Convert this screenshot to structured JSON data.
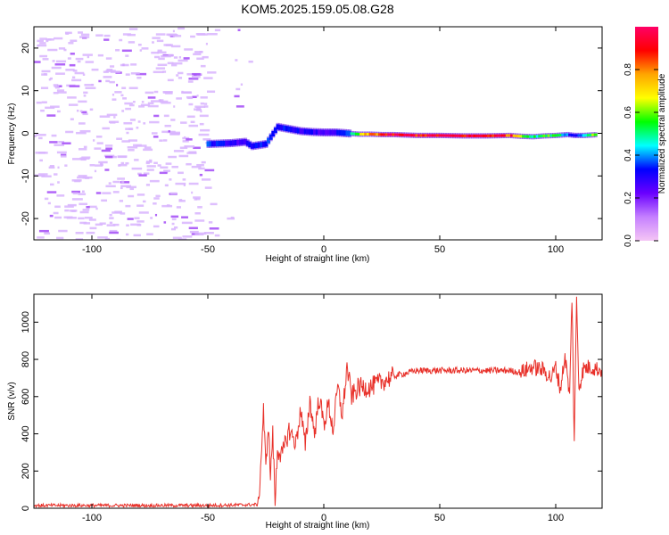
{
  "figure": {
    "title": "KOM5.2025.159.05.08.G28"
  },
  "chart_data": [
    {
      "type": "heatmap",
      "id": "spectrogram",
      "title": "KOM5.2025.159.05.08.G28",
      "xlabel": "Height of straight line (km)",
      "ylabel": "Frequency (Hz)",
      "xlim": [
        -125,
        120
      ],
      "ylim": [
        -25,
        25
      ],
      "xticks": [
        -100,
        -50,
        0,
        50,
        100
      ],
      "yticks": [
        -20,
        -10,
        0,
        10,
        20
      ],
      "colorbar": {
        "label": "Normalized spectral amplitude",
        "range": [
          0,
          1
        ],
        "ticks": [
          0.0,
          0.2,
          0.4,
          0.6,
          0.8
        ],
        "tick_labels": [
          "0.0",
          "0.2",
          "0.4",
          "0.6",
          "0.8"
        ],
        "colormap": [
          "#f5c6f5",
          "#c580ff",
          "#6a00ff",
          "#0000ff",
          "#00ffff",
          "#00ff00",
          "#ffff00",
          "#ffa500",
          "#ff0000",
          "#ff0066"
        ]
      },
      "noise_region_x": [
        -125,
        -50
      ],
      "signal_track": [
        {
          "x": -50,
          "y": -2.5,
          "amp": 0.35
        },
        {
          "x": -40,
          "y": -2.3,
          "amp": 0.3
        },
        {
          "x": -34,
          "y": -2.0,
          "amp": 0.25
        },
        {
          "x": -31,
          "y": -3.0,
          "amp": 0.35
        },
        {
          "x": -25,
          "y": -2.5,
          "amp": 0.35
        },
        {
          "x": -20,
          "y": 1.5,
          "amp": 0.3
        },
        {
          "x": -15,
          "y": 1.0,
          "amp": 0.35
        },
        {
          "x": -10,
          "y": 0.5,
          "amp": 0.3
        },
        {
          "x": -5,
          "y": 0.3,
          "amp": 0.3
        },
        {
          "x": 0,
          "y": 0.2,
          "amp": 0.25
        },
        {
          "x": 5,
          "y": 0.2,
          "amp": 0.3
        },
        {
          "x": 10,
          "y": 0.0,
          "amp": 0.35
        },
        {
          "x": 15,
          "y": -0.2,
          "amp": 0.6
        },
        {
          "x": 20,
          "y": -0.2,
          "amp": 0.8
        },
        {
          "x": 25,
          "y": -0.3,
          "amp": 0.9
        },
        {
          "x": 30,
          "y": -0.3,
          "amp": 0.95
        },
        {
          "x": 40,
          "y": -0.5,
          "amp": 0.95
        },
        {
          "x": 50,
          "y": -0.5,
          "amp": 0.95
        },
        {
          "x": 60,
          "y": -0.6,
          "amp": 0.95
        },
        {
          "x": 70,
          "y": -0.6,
          "amp": 0.95
        },
        {
          "x": 80,
          "y": -0.5,
          "amp": 0.9
        },
        {
          "x": 85,
          "y": -0.7,
          "amp": 0.7
        },
        {
          "x": 90,
          "y": -0.8,
          "amp": 0.5
        },
        {
          "x": 95,
          "y": -0.6,
          "amp": 0.55
        },
        {
          "x": 100,
          "y": -0.5,
          "amp": 0.6
        },
        {
          "x": 105,
          "y": -0.3,
          "amp": 0.4
        },
        {
          "x": 108,
          "y": -0.5,
          "amp": 0.3
        },
        {
          "x": 112,
          "y": -0.5,
          "amp": 0.45
        },
        {
          "x": 118,
          "y": -0.3,
          "amp": 0.7
        }
      ]
    },
    {
      "type": "line",
      "id": "snr",
      "xlabel": "Height of straight line (km)",
      "ylabel": "SNR (v/v)",
      "xlim": [
        -125,
        120
      ],
      "ylim": [
        0,
        1150
      ],
      "xticks": [
        -100,
        -50,
        0,
        50,
        100
      ],
      "yticks": [
        0,
        200,
        400,
        600,
        800,
        1000
      ],
      "color": "#e8312a",
      "series": [
        {
          "x": [
            -125,
            -100,
            -75,
            -50,
            -35,
            -28.5,
            -27.5,
            -26,
            -25,
            -24,
            -23,
            -22,
            -21,
            -20,
            -18,
            -15,
            -12,
            -10,
            -8,
            -6,
            -4,
            -2,
            0,
            2,
            4,
            6,
            8,
            10,
            12,
            15,
            20,
            25,
            30,
            40,
            50,
            60,
            70,
            80,
            85,
            90,
            95,
            98,
            100,
            102,
            104,
            106,
            107,
            108,
            109,
            110,
            112,
            115,
            120
          ],
          "y": [
            15,
            15,
            15,
            15,
            18,
            20,
            150,
            530,
            200,
            460,
            180,
            400,
            30,
            320,
            280,
            420,
            350,
            530,
            330,
            580,
            400,
            600,
            450,
            560,
            420,
            650,
            500,
            760,
            600,
            650,
            650,
            680,
            710,
            740,
            740,
            740,
            740,
            740,
            730,
            760,
            740,
            700,
            760,
            640,
            820,
            600,
            1140,
            360,
            1120,
            650,
            750,
            760,
            740
          ]
        }
      ]
    }
  ]
}
